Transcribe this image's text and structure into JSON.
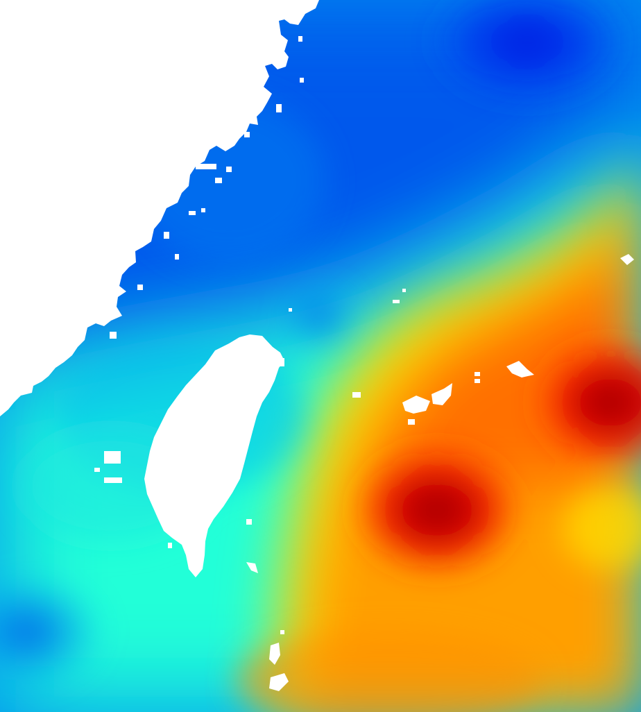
{
  "map": {
    "type": "heatmap",
    "colormap": "jet",
    "palette": {
      "blue-dark": "#0010e0",
      "blue": "#0066f0",
      "cyan": "#00ffe8",
      "yellow": "#ffff00",
      "orange": "#ff9a00",
      "red": "#ff2000",
      "dark-red": "#a00000",
      "land": "#ffffff"
    },
    "regions": [
      "north-sea-region",
      "taiwan-strait-region",
      "northwest-coastal-region",
      "southwest-sea-region",
      "southeast-warm-region"
    ],
    "features": [
      "mainland-coast",
      "taiwan-island",
      "offshore-islands",
      "ryukyu-islands",
      "cold-core-north",
      "cold-core-strait",
      "cold-core-southwest",
      "warm-core-south",
      "warm-core-east",
      "frontal-zone"
    ]
  }
}
